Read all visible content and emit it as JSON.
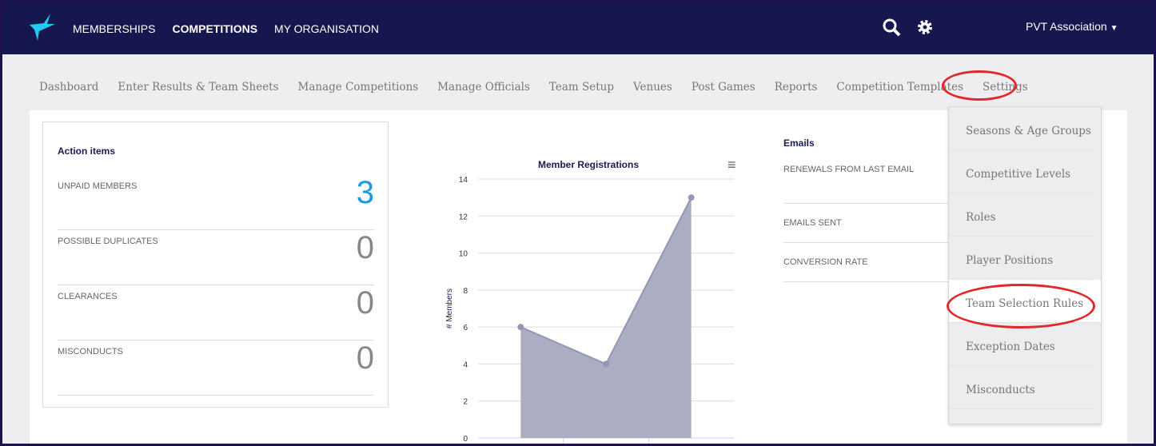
{
  "header": {
    "nav": [
      "MEMBERSHIPS",
      "COMPETITIONS",
      "MY ORGANISATION"
    ],
    "active": "COMPETITIONS",
    "user": "PVT Association",
    "icons": [
      "search-icon",
      "gear-icon",
      "caret-down-icon"
    ]
  },
  "subnav": [
    "Dashboard",
    "Enter Results & Team Sheets",
    "Manage Competitions",
    "Manage Officials",
    "Team Setup",
    "Venues",
    "Post Games",
    "Reports",
    "Competition Templates",
    "Settings"
  ],
  "settings_menu": [
    "Seasons & Age Groups",
    "Competitive Levels",
    "Roles",
    "Player Positions",
    "Team Selection Rules",
    "Exception Dates",
    "Misconducts"
  ],
  "action_items": {
    "title": "Action items",
    "rows": [
      {
        "label": "UNPAID MEMBERS",
        "value": "3"
      },
      {
        "label": "POSSIBLE DUPLICATES",
        "value": "0"
      },
      {
        "label": "CLEARANCES",
        "value": "0"
      },
      {
        "label": "MISCONDUCTS",
        "value": "0"
      }
    ]
  },
  "emails": {
    "title": "Emails",
    "rows": [
      "RENEWALS FROM LAST EMAIL",
      "EMAILS SENT",
      "CONVERSION RATE"
    ]
  },
  "colors": {
    "header": "#16174f",
    "accent": "#1a9be0",
    "area": "#abaec2",
    "annotation": "#e02a2a"
  },
  "chart_data": {
    "type": "area",
    "title": "Member Registrations",
    "ylabel": "# Members",
    "ylim": [
      0,
      14
    ],
    "yticks": [
      0,
      2,
      4,
      6,
      8,
      10,
      12,
      14
    ],
    "values": [
      6,
      4,
      13
    ],
    "grid": true
  }
}
